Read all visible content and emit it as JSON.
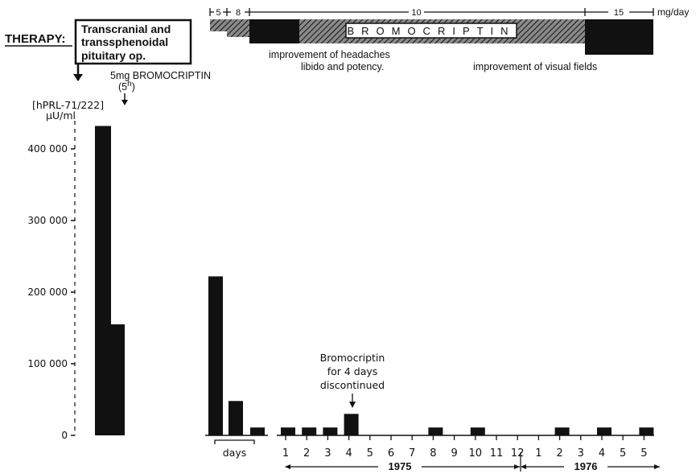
{
  "chart_data": {
    "type": "bar",
    "ylabel": [
      "[hPRL-71/222]",
      "µU/ml"
    ],
    "yticks": [
      0,
      100000,
      200000,
      300000,
      400000
    ],
    "ytick_labels": [
      "0",
      "100 000",
      "200 000",
      "300 000",
      "400 000"
    ],
    "ylim": [
      0,
      450000
    ],
    "bars": [
      {
        "group": "pre",
        "value": 432000
      },
      {
        "group": "pre",
        "value": 155000
      },
      {
        "group": "days",
        "value": 222000
      },
      {
        "group": "days",
        "value": 48000
      },
      {
        "group": "days",
        "value": 11000
      },
      {
        "group": "months",
        "month_index": 0,
        "value": 11000
      },
      {
        "group": "months",
        "month_index": 1,
        "value": 11000
      },
      {
        "group": "months",
        "month_index": 2,
        "value": 11000
      },
      {
        "group": "months",
        "month_index": 3,
        "value": 30000
      },
      {
        "group": "months",
        "month_index": 7,
        "value": 11000
      },
      {
        "group": "months",
        "month_index": 9,
        "value": 11000
      },
      {
        "group": "months",
        "month_index": 13,
        "value": 11000
      },
      {
        "group": "months",
        "month_index": 15,
        "value": 11000
      },
      {
        "group": "months",
        "month_index": 17,
        "value": 11000
      }
    ],
    "month_labels": [
      "1",
      "2",
      "3",
      "4",
      "5",
      "6",
      "7",
      "8",
      "9",
      "10",
      "11",
      "12",
      "1",
      "2",
      "3",
      "4",
      "5",
      "5"
    ],
    "days_label": "days",
    "year_labels": [
      "1975",
      "1976"
    ],
    "therapy": {
      "label": "THERAPY:",
      "operation": [
        "Transcranial and",
        "transsphenoidal",
        "pituitary op."
      ],
      "initial_dose": [
        "5mg BROMOCRIPTIN",
        "(5",
        "h",
        ")"
      ],
      "drug_name": "BROMOCRIPTIN",
      "dose_labels": [
        "5",
        "8",
        "10",
        "15"
      ],
      "dose_unit": "mg/day",
      "notes": [
        [
          "improvement of headaches",
          "libido and potency."
        ],
        [
          "improvement of visual fields"
        ]
      ],
      "discontinued": [
        "Bromocriptin",
        "for 4 days",
        "discontinued"
      ]
    }
  }
}
